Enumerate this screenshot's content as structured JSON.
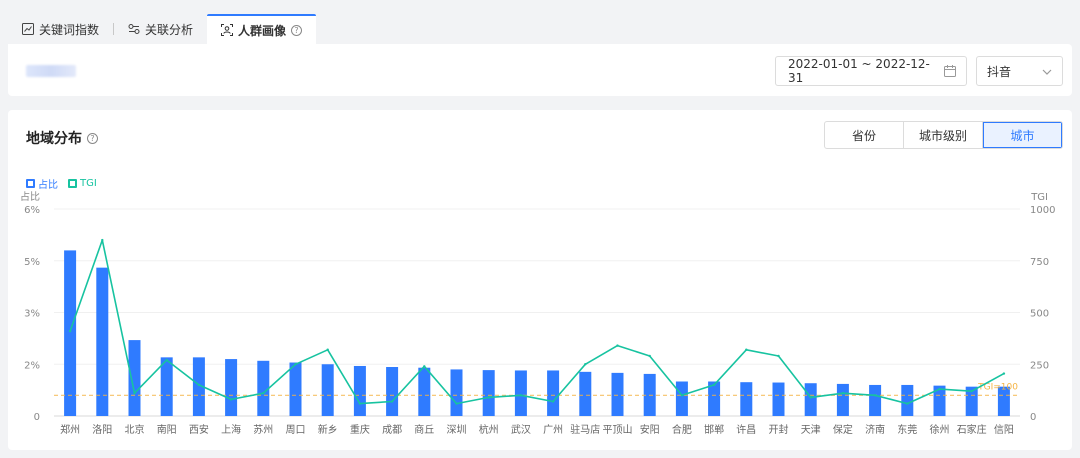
{
  "tabs": [
    {
      "label": "关键词指数",
      "icon": "line-chart-icon",
      "active": false
    },
    {
      "label": "关联分析",
      "icon": "link-icon",
      "active": false
    },
    {
      "label": "人群画像",
      "icon": "user-scan-icon",
      "active": true
    }
  ],
  "filters": {
    "date_range": "2022-01-01 ~ 2022-12-31",
    "platform": "抖音"
  },
  "panel": {
    "title": "地域分布",
    "segments": [
      {
        "label": "省份",
        "active": false
      },
      {
        "label": "城市级别",
        "active": false
      },
      {
        "label": "城市",
        "active": true
      }
    ]
  },
  "colors": {
    "bar": "#2f7bff",
    "line": "#17c3a0",
    "reference": "#f5b342",
    "accent": "#2f7bff"
  },
  "chart_data": {
    "type": "bar",
    "categories": [
      "郑州",
      "洛阳",
      "北京",
      "南阳",
      "西安",
      "上海",
      "苏州",
      "周口",
      "新乡",
      "重庆",
      "成都",
      "商丘",
      "深圳",
      "杭州",
      "武汉",
      "广州",
      "驻马店",
      "平顶山",
      "安阳",
      "合肥",
      "邯郸",
      "许昌",
      "开封",
      "天津",
      "保定",
      "济南",
      "东莞",
      "徐州",
      "石家庄",
      "信阳"
    ],
    "series": [
      {
        "name": "占比",
        "axis": "left",
        "type": "bar",
        "values": [
          4.8,
          4.3,
          2.2,
          1.7,
          1.7,
          1.65,
          1.6,
          1.55,
          1.5,
          1.45,
          1.42,
          1.4,
          1.35,
          1.33,
          1.32,
          1.32,
          1.28,
          1.25,
          1.22,
          1.0,
          1.0,
          0.98,
          0.97,
          0.95,
          0.93,
          0.9,
          0.9,
          0.88,
          0.85,
          0.85
        ]
      },
      {
        "name": "TGI",
        "axis": "right",
        "type": "line",
        "values": [
          410,
          850,
          110,
          270,
          150,
          80,
          110,
          250,
          320,
          60,
          70,
          240,
          60,
          90,
          100,
          70,
          250,
          340,
          290,
          100,
          150,
          320,
          290,
          90,
          110,
          100,
          60,
          130,
          120,
          205
        ]
      }
    ],
    "y_left": {
      "label": "占比",
      "ticks": [
        "0",
        "2%",
        "3%",
        "5%",
        "6%"
      ],
      "max": 6
    },
    "y_right": {
      "label": "TGI",
      "ticks": [
        "0",
        "250",
        "500",
        "750",
        "1000"
      ],
      "max": 1000
    },
    "reference_line": {
      "value": 100,
      "label": "TGI=100"
    },
    "grid": true,
    "legend": "top-left"
  }
}
